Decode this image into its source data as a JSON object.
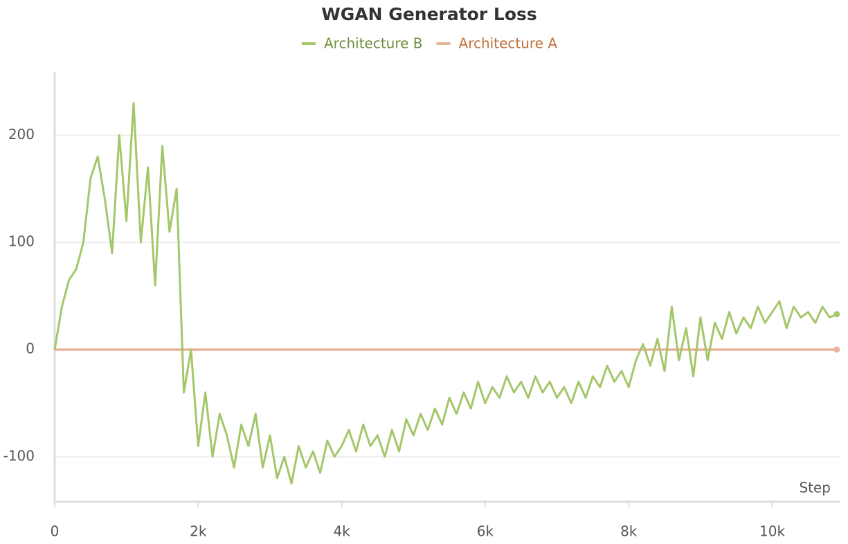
{
  "chart_data": {
    "type": "line",
    "title": "WGAN Generator Loss",
    "xlabel": "Step",
    "x": [
      0,
      100,
      200,
      300,
      400,
      500,
      600,
      700,
      800,
      900,
      1000,
      1100,
      1200,
      1300,
      1400,
      1500,
      1600,
      1700,
      1800,
      1900,
      2000,
      2100,
      2200,
      2300,
      2400,
      2500,
      2600,
      2700,
      2800,
      2900,
      3000,
      3100,
      3200,
      3300,
      3400,
      3500,
      3600,
      3700,
      3800,
      3900,
      4000,
      4100,
      4200,
      4300,
      4400,
      4500,
      4600,
      4700,
      4800,
      4900,
      5000,
      5100,
      5200,
      5300,
      5400,
      5500,
      5600,
      5700,
      5800,
      5900,
      6000,
      6100,
      6200,
      6300,
      6400,
      6500,
      6600,
      6700,
      6800,
      6900,
      7000,
      7100,
      7200,
      7300,
      7400,
      7500,
      7600,
      7700,
      7800,
      7900,
      8000,
      8100,
      8200,
      8300,
      8400,
      8500,
      8600,
      8700,
      8800,
      8900,
      9000,
      9100,
      9200,
      9300,
      9400,
      9500,
      9600,
      9700,
      9800,
      9900,
      10000,
      10100,
      10200,
      10300,
      10400,
      10500,
      10600,
      10700,
      10800,
      10900
    ],
    "series": [
      {
        "name": "Architecture B",
        "color": "#a3c76a",
        "values": [
          0,
          40,
          65,
          75,
          100,
          160,
          180,
          140,
          90,
          200,
          120,
          230,
          100,
          170,
          60,
          190,
          110,
          150,
          -40,
          0,
          -90,
          -40,
          -100,
          -60,
          -80,
          -110,
          -70,
          -90,
          -60,
          -110,
          -80,
          -120,
          -100,
          -125,
          -90,
          -110,
          -95,
          -115,
          -85,
          -100,
          -90,
          -75,
          -95,
          -70,
          -90,
          -80,
          -100,
          -75,
          -95,
          -65,
          -80,
          -60,
          -75,
          -55,
          -70,
          -45,
          -60,
          -40,
          -55,
          -30,
          -50,
          -35,
          -45,
          -25,
          -40,
          -30,
          -45,
          -25,
          -40,
          -30,
          -45,
          -35,
          -50,
          -30,
          -45,
          -25,
          -35,
          -15,
          -30,
          -20,
          -35,
          -10,
          5,
          -15,
          10,
          -20,
          40,
          -10,
          20,
          -25,
          30,
          -10,
          25,
          10,
          35,
          15,
          30,
          20,
          40,
          25,
          35,
          45,
          20,
          40,
          30,
          35,
          25,
          40,
          30,
          33
        ]
      },
      {
        "name": "Architecture A",
        "color": "#e8b49a",
        "values": [
          0,
          0,
          0,
          0,
          0,
          0,
          0,
          0,
          0,
          0,
          0,
          0,
          0,
          0,
          0,
          0,
          0,
          0,
          0,
          0,
          0,
          0,
          0,
          0,
          0,
          0,
          0,
          0,
          0,
          0,
          0,
          0,
          0,
          0,
          0,
          0,
          0,
          0,
          0,
          0,
          0,
          0,
          0,
          0,
          0,
          0,
          0,
          0,
          0,
          0,
          0,
          0,
          0,
          0,
          0,
          0,
          0,
          0,
          0,
          0,
          0,
          0,
          0,
          0,
          0,
          0,
          0,
          0,
          0,
          0,
          0,
          0,
          0,
          0,
          0,
          0,
          0,
          0,
          0,
          0,
          0,
          0,
          0,
          0,
          0,
          0,
          0,
          0,
          0,
          0,
          0,
          0,
          0,
          0,
          0,
          0,
          0,
          0,
          0,
          0,
          0,
          0,
          0,
          0,
          0,
          0,
          0,
          0,
          0,
          0
        ]
      }
    ],
    "xlim": [
      0,
      10950
    ],
    "ylim": [
      -142,
      259
    ],
    "xticks": [
      0,
      {
        "value": 2000,
        "label": "2k"
      },
      {
        "value": 4000,
        "label": "4k"
      },
      {
        "value": 6000,
        "label": "6k"
      },
      {
        "value": 8000,
        "label": "8k"
      },
      {
        "value": 10000,
        "label": "10k"
      }
    ],
    "yticks": [
      -100,
      0,
      100,
      200
    ],
    "grid": true
  }
}
